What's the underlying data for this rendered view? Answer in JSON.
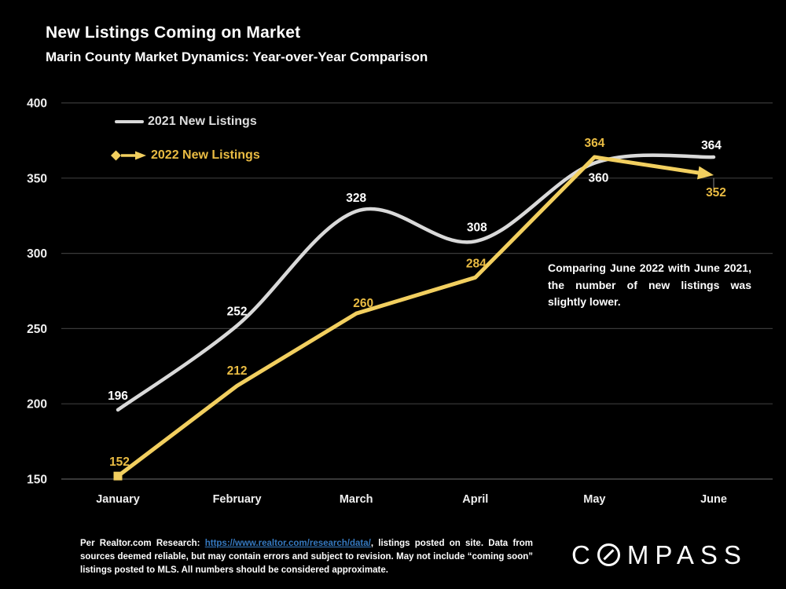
{
  "title": "New Listings Coming on Market",
  "subtitle": "Marin County Market Dynamics: Year-over-Year Comparison",
  "legend": {
    "items": [
      {
        "label": "2021 New Listings"
      },
      {
        "label": "2022 New Listings"
      }
    ]
  },
  "chart_data": {
    "type": "line",
    "categories": [
      "January",
      "February",
      "March",
      "April",
      "May",
      "June"
    ],
    "series": [
      {
        "name": "2021 New Listings",
        "values": [
          196,
          252,
          328,
          308,
          360,
          364
        ],
        "style": "smooth"
      },
      {
        "name": "2022 New Listings",
        "values": [
          152,
          212,
          260,
          284,
          364,
          352
        ],
        "style": "straight",
        "start_marker": "square",
        "end_marker": "arrow"
      }
    ],
    "ylim": [
      150,
      400
    ],
    "yticks": [
      150,
      200,
      250,
      300,
      350,
      400
    ],
    "grid": true,
    "legend_position": "top-left-inside",
    "title": "New Listings Coming on Market",
    "xlabel": "",
    "ylabel": ""
  },
  "annotation": "Comparing June 2022 with June 2021, the number of new listings was slightly lower.",
  "footer": {
    "prefix": "Per Realtor.com Research:  ",
    "link": "https://www.realtor.com/research/data/",
    "suffix": ", listings posted on site. Data from sources deemed reliable, but may contain errors and subject to revision. May not include “coming soon” listings posted to MLS. All numbers should be considered approximate."
  },
  "logo": {
    "full": "COMPASS",
    "first": "C",
    "rest": "MPASS"
  },
  "colors": {
    "background": "#000000",
    "white_line": "#d9d9d9",
    "gold_line": "#f2cf5f",
    "gold_label": "#eabc43",
    "white_label": "#ffffff",
    "legend_white_text": "#dedede",
    "grid": "#3a3a3a",
    "axis": "#5a5a5a",
    "leader": "#8a8a8a",
    "tick_label": "#efefef",
    "link": "#3579c0"
  }
}
